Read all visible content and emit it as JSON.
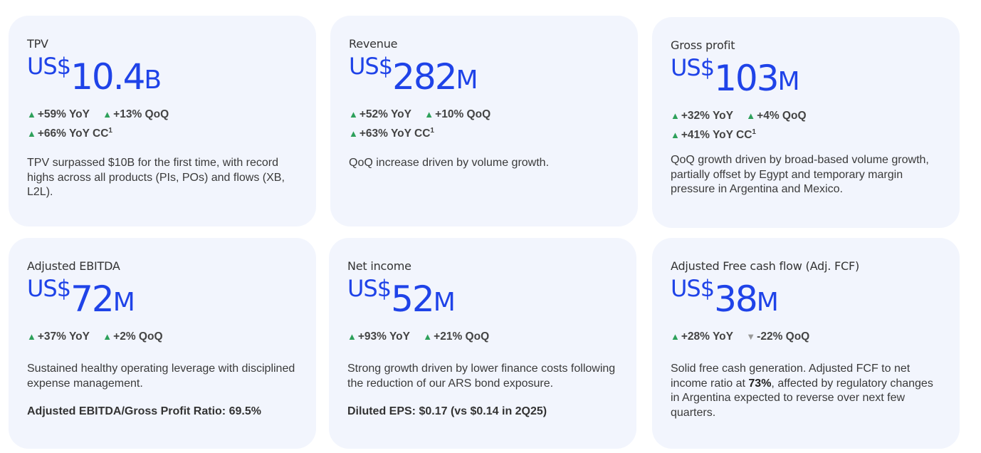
{
  "cards": [
    {
      "title": "TPV",
      "currency": "US$",
      "number": "10.4",
      "unit": "B",
      "yoy": "+59% YoY",
      "qoq": "+13% QoQ",
      "cc": "+66% YoY CC",
      "cc_sup": "1",
      "desc": "TPV surpassed $10B for the first time, with record highs across all products (PIs, POs) and flows (XB, L2L)."
    },
    {
      "title": "Revenue",
      "currency": "US$",
      "number": "282",
      "unit": "M",
      "yoy": "+52% YoY",
      "qoq": "+10% QoQ",
      "cc": "+63% YoY CC",
      "cc_sup": "1",
      "desc": "QoQ increase driven by volume growth."
    },
    {
      "title": "Gross profit",
      "currency": "US$",
      "number": "103",
      "unit": "M",
      "yoy": "+32% YoY",
      "qoq": "+4% QoQ",
      "cc": "+41% YoY CC",
      "cc_sup": "1",
      "desc": "QoQ growth driven by broad-based volume growth, partially offset by Egypt and temporary margin pressure in Argentina and Mexico."
    },
    {
      "title": "Adjusted EBITDA",
      "currency": "US$",
      "number": "72",
      "unit": "M",
      "yoy": "+37% YoY",
      "qoq": "+2% QoQ",
      "desc": "Sustained healthy operating leverage with disciplined expense management.",
      "note": "Adjusted EBITDA/Gross Profit Ratio: 69.5%"
    },
    {
      "title": "Net income",
      "currency": "US$",
      "number": "52",
      "unit": "M",
      "yoy": "+93% YoY",
      "qoq": "+21% QoQ",
      "desc": "Strong growth driven by lower finance costs following the reduction of our ARS bond exposure.",
      "note": "Diluted EPS: $0.17 (vs $0.14 in 2Q25)"
    },
    {
      "title": "Adjusted Free cash flow (Adj. FCF)",
      "currency": "US$",
      "number": "38",
      "unit": "M",
      "yoy": "+28% YoY",
      "qoq": "-22% QoQ",
      "desc_pre": "Solid free cash generation. Adjusted FCF to net income ratio at ",
      "desc_bold": "73%",
      "desc_post": ", affected by regulatory changes in Argentina expected to reverse over next few quarters."
    }
  ],
  "icons": {
    "up": "triangle-up-icon",
    "down": "triangle-down-icon"
  },
  "colors": {
    "value": "#1f43e8",
    "up": "#2da05a",
    "down": "#9a9a9a",
    "card_bg": "#f2f5fd"
  }
}
